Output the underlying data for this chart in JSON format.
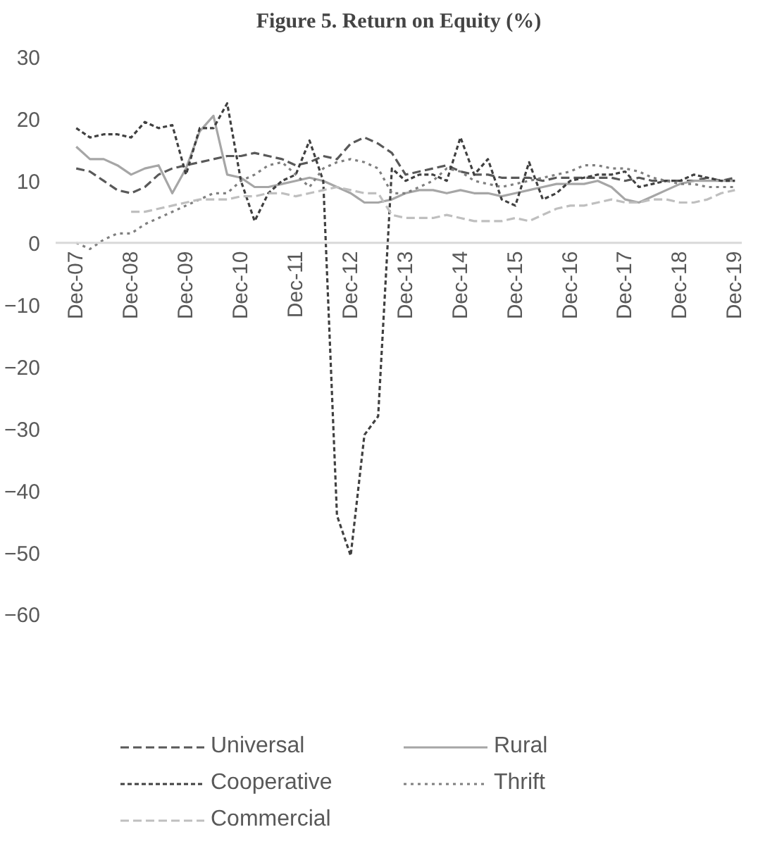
{
  "chart_data": {
    "type": "line",
    "title": "Figure 5. Return on Equity (%)",
    "categories": [
      "Dec-07",
      null,
      null,
      null,
      "Dec-08",
      null,
      null,
      null,
      "Dec-09",
      null,
      null,
      null,
      "Dec-10",
      null,
      null,
      null,
      "Dec-11",
      null,
      null,
      null,
      "Dec-12",
      null,
      null,
      null,
      "Dec-13",
      null,
      null,
      null,
      "Dec-14",
      null,
      null,
      null,
      "Dec-15",
      null,
      null,
      null,
      "Dec-16",
      null,
      null,
      null,
      "Dec-17",
      null,
      null,
      null,
      "Dec-18",
      null,
      null,
      null,
      "Dec-19"
    ],
    "series": [
      {
        "name": "Universal",
        "color": "#595959",
        "line_style": "dashed",
        "values": [
          12,
          11.5,
          10,
          8.5,
          8,
          9,
          11,
          12,
          12.5,
          13,
          13.5,
          14,
          14,
          14.5,
          14,
          13.5,
          12.5,
          13,
          14,
          13.5,
          16,
          17,
          16,
          14.5,
          11,
          11.5,
          12,
          12.5,
          11.5,
          11,
          11,
          10.5,
          10.5,
          10.5,
          10,
          10.5,
          10.5,
          10.5,
          10.5,
          10.5,
          10,
          10.5,
          10,
          10,
          10,
          10,
          10.5,
          10,
          10.5
        ]
      },
      {
        "name": "Rural",
        "color": "#a6a6a6",
        "line_style": "solid",
        "values": [
          15.5,
          13.5,
          13.5,
          12.5,
          11,
          12,
          12.5,
          8,
          12,
          18,
          20.5,
          11,
          10.5,
          9,
          9,
          9.5,
          10,
          10.5,
          10,
          9,
          8,
          6.5,
          6.5,
          7,
          8,
          8.5,
          8.5,
          8,
          8.5,
          8,
          8,
          7.5,
          8,
          8.5,
          9,
          9.5,
          9.5,
          9.5,
          10,
          9,
          7,
          6.5,
          7.5,
          8.5,
          9.5,
          10,
          10,
          10,
          10
        ]
      },
      {
        "name": "Cooperative",
        "color": "#404040",
        "line_style": "dashed",
        "values": [
          18.5,
          17,
          17.5,
          17.5,
          17,
          19.5,
          18.5,
          19,
          11,
          18.5,
          18.5,
          22.5,
          10,
          3.5,
          8,
          10,
          11,
          16.5,
          10,
          -44,
          -50.5,
          -31,
          -28,
          12,
          10,
          11,
          11,
          10,
          17,
          11,
          13.5,
          7,
          6,
          13,
          7,
          8,
          10,
          10.5,
          11,
          11,
          11.5,
          9,
          9.5,
          10,
          10,
          11,
          10.5,
          10,
          10
        ]
      },
      {
        "name": "Thrift",
        "color": "#7f7f7f",
        "line_style": "dotted",
        "values": [
          0,
          -1,
          0.5,
          1.5,
          1.5,
          3,
          4,
          5,
          6,
          7,
          8,
          8,
          10,
          11,
          12.5,
          13,
          11,
          9,
          12,
          13,
          13.5,
          13,
          12,
          8,
          8,
          9,
          10,
          12,
          11.5,
          10,
          9.5,
          9,
          9.5,
          10,
          10.5,
          11,
          11.5,
          12.5,
          12.5,
          12,
          12,
          11.5,
          10.5,
          10,
          9.5,
          9.5,
          9,
          9,
          9
        ]
      },
      {
        "name": "Commercial",
        "color": "#bfbfbf",
        "line_style": "dashed",
        "values": [
          null,
          null,
          null,
          null,
          5,
          5,
          5.5,
          6,
          6.5,
          7,
          7,
          7,
          7.5,
          7.5,
          8,
          8,
          7.5,
          8,
          8.5,
          9,
          8.5,
          8,
          8,
          4.5,
          4,
          4,
          4,
          4.5,
          4,
          3.5,
          3.5,
          3.5,
          4,
          3.5,
          4.5,
          5.5,
          6,
          6,
          6.5,
          7,
          6.5,
          6.5,
          7,
          7,
          6.5,
          6.5,
          7,
          8,
          8.5
        ]
      }
    ],
    "ylim": [
      -60,
      30
    ],
    "yticks": [
      -60,
      -50,
      -40,
      -30,
      -20,
      -10,
      0,
      10,
      20,
      30
    ],
    "grid": false,
    "legend": "bottom"
  }
}
